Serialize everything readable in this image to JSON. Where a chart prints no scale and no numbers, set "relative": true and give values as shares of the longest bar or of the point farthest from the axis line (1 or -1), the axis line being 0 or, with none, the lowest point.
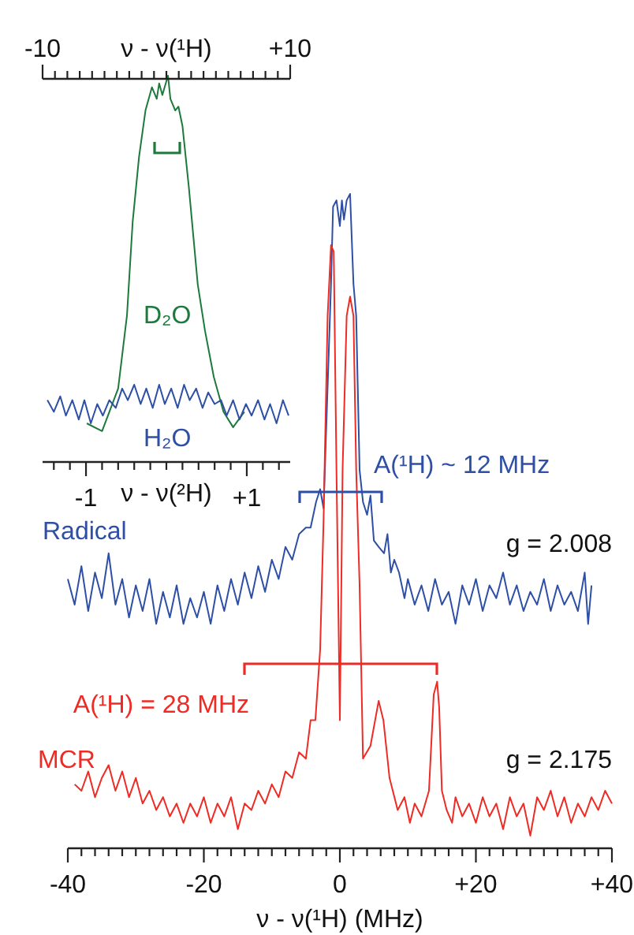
{
  "chart_data": [
    {
      "type": "line",
      "relative": true,
      "xlabel": "ν - ν(¹H) (MHz)",
      "xlim": [
        -40,
        40
      ],
      "xticks": [
        -40,
        {
          "value": -38,
          "label": null
        },
        {
          "value": -36,
          "label": null
        },
        {
          "value": -34,
          "label": null
        },
        {
          "value": -32,
          "label": null
        },
        {
          "value": -30,
          "label": null
        },
        {
          "value": -28,
          "label": null
        },
        {
          "value": -26,
          "label": null
        },
        {
          "value": -24,
          "label": null
        },
        {
          "value": -22,
          "label": null
        },
        -20,
        {
          "value": -18,
          "label": null
        },
        {
          "value": -16,
          "label": null
        },
        {
          "value": -14,
          "label": null
        },
        {
          "value": -12,
          "label": null
        },
        {
          "value": -10,
          "label": null
        },
        {
          "value": -8,
          "label": null
        },
        {
          "value": -6,
          "label": null
        },
        {
          "value": -4,
          "label": null
        },
        {
          "value": -2,
          "label": null
        },
        0,
        {
          "value": 2,
          "label": null
        },
        {
          "value": 4,
          "label": null
        },
        {
          "value": 6,
          "label": null
        },
        {
          "value": 8,
          "label": null
        },
        {
          "value": 10,
          "label": null
        },
        {
          "value": 12,
          "label": null
        },
        {
          "value": 14,
          "label": null
        },
        {
          "value": 16,
          "label": null
        },
        {
          "value": 18,
          "label": null
        },
        {
          "value": 20,
          "label": "+20"
        },
        {
          "value": 22,
          "label": null
        },
        {
          "value": 24,
          "label": null
        },
        {
          "value": 26,
          "label": null
        },
        {
          "value": 28,
          "label": null
        },
        {
          "value": 30,
          "label": null
        },
        {
          "value": 32,
          "label": null
        },
        {
          "value": 34,
          "label": null
        },
        {
          "value": 36,
          "label": null
        },
        {
          "value": 38,
          "label": null
        },
        {
          "value": 40,
          "label": "+40"
        }
      ],
      "grid": false,
      "marker": "none",
      "line_style": "solid",
      "series": [
        {
          "name": "Radical",
          "color": "#2e4fa6",
          "x": [
            -40,
            -39,
            -38,
            -37,
            -36,
            -35,
            -34,
            -33,
            -32,
            -31,
            -30,
            -29,
            -28,
            -27,
            -26,
            -25,
            -24,
            -23,
            -22,
            -21,
            -20,
            -19,
            -18,
            -17,
            -16,
            -15,
            -14,
            -13,
            -12,
            -11,
            -10,
            -9,
            -8,
            -7,
            -6,
            -5,
            -4.3,
            -3.5,
            -2.9,
            -2.4,
            -1.8,
            -1.3,
            -1.0,
            -0.5,
            0,
            0.3,
            0.6,
            1.0,
            1.5,
            2.0,
            2.4,
            2.9,
            3.4,
            4,
            4.5,
            5,
            5.7,
            6.5,
            7,
            7.5,
            8,
            8.7,
            9.5,
            10,
            11,
            12,
            13,
            14,
            15,
            16,
            17,
            18,
            19,
            20,
            21,
            22,
            23,
            24,
            25,
            26,
            27,
            28,
            29,
            30,
            31,
            32,
            33,
            34,
            35,
            36,
            36.5,
            37
          ],
          "values": [
            0.4,
            0.36,
            0.42,
            0.35,
            0.41,
            0.37,
            0.44,
            0.36,
            0.4,
            0.34,
            0.39,
            0.35,
            0.4,
            0.33,
            0.38,
            0.34,
            0.39,
            0.33,
            0.37,
            0.34,
            0.38,
            0.33,
            0.39,
            0.35,
            0.4,
            0.36,
            0.41,
            0.37,
            0.42,
            0.38,
            0.43,
            0.4,
            0.45,
            0.43,
            0.47,
            0.48,
            0.48,
            0.52,
            0.54,
            0.51,
            0.7,
            0.86,
            0.98,
            0.99,
            0.95,
            0.99,
            0.96,
            0.99,
            1.0,
            0.86,
            0.81,
            0.57,
            0.52,
            0.5,
            0.53,
            0.46,
            0.45,
            0.44,
            0.47,
            0.41,
            0.43,
            0.41,
            0.37,
            0.4,
            0.36,
            0.39,
            0.35,
            0.4,
            0.36,
            0.38,
            0.33,
            0.39,
            0.36,
            0.4,
            0.35,
            0.39,
            0.37,
            0.41,
            0.36,
            0.39,
            0.35,
            0.38,
            0.36,
            0.4,
            0.35,
            0.39,
            0.36,
            0.38,
            0.35,
            0.41,
            0.33,
            0.39
          ]
        },
        {
          "name": "MCR",
          "color": "#ee2b24",
          "x": [
            -39,
            -38,
            -37,
            -36,
            -35,
            -34,
            -33,
            -32,
            -31,
            -30,
            -29,
            -28,
            -27,
            -26,
            -25,
            -24,
            -23,
            -22,
            -21,
            -20,
            -19,
            -18,
            -17,
            -16,
            -15,
            -14,
            -13,
            -12,
            -11,
            -10,
            -9,
            -8,
            -7,
            -6,
            -5,
            -4.3,
            -3.6,
            -2.9,
            -2.4,
            -1.8,
            -1.3,
            -0.9,
            -0.5,
            0,
            0.4,
            1.0,
            1.5,
            2.0,
            2.4,
            2.9,
            3.4,
            4.5,
            5.7,
            6.4,
            7.3,
            8.5,
            9.5,
            10.3,
            11,
            12,
            13.1,
            13.8,
            14.3,
            14.6,
            15,
            15.7,
            16.5,
            17,
            18,
            19,
            20,
            21,
            22,
            23,
            24,
            25,
            26,
            27,
            28,
            29,
            30,
            31,
            32,
            33,
            34,
            35,
            36,
            37,
            38,
            39,
            40
          ],
          "values": [
            0.08,
            0.07,
            0.1,
            0.06,
            0.09,
            0.11,
            0.07,
            0.1,
            0.06,
            0.09,
            0.05,
            0.07,
            0.04,
            0.06,
            0.03,
            0.05,
            0.02,
            0.05,
            0.03,
            0.06,
            0.02,
            0.05,
            0.03,
            0.06,
            0.01,
            0.05,
            0.04,
            0.07,
            0.05,
            0.08,
            0.06,
            0.1,
            0.09,
            0.13,
            0.12,
            0.18,
            0.18,
            0.29,
            0.49,
            0.81,
            0.92,
            0.91,
            0.57,
            0.18,
            0.57,
            0.81,
            0.84,
            0.81,
            0.57,
            0.39,
            0.12,
            0.14,
            0.21,
            0.18,
            0.09,
            0.04,
            0.06,
            0.02,
            0.05,
            0.03,
            0.07,
            0.22,
            0.24,
            0.2,
            0.07,
            0.04,
            0.02,
            0.06,
            0.03,
            0.05,
            0.02,
            0.06,
            0.03,
            0.05,
            0.01,
            0.06,
            0.03,
            0.05,
            0.0,
            0.06,
            0.04,
            0.07,
            0.03,
            0.06,
            0.02,
            0.05,
            0.03,
            0.06,
            0.04,
            0.07,
            0.05
          ]
        }
      ],
      "annotations": [
        "A(¹H) ~ 12 MHz",
        "A(¹H) = 28 MHz",
        "g = 2.008",
        "g = 2.175"
      ]
    },
    {
      "type": "line",
      "relative": true,
      "xlabel": "ν - ν(²H)",
      "xlim": [
        -1.54,
        1.54
      ],
      "xticks": [
        {
          "value": -1.4,
          "label": null
        },
        {
          "value": -1.2,
          "label": null
        },
        -1,
        {
          "value": -0.8,
          "label": null
        },
        {
          "value": -0.6,
          "label": null
        },
        {
          "value": -0.4,
          "label": null
        },
        {
          "value": -0.2,
          "label": null
        },
        {
          "value": 0,
          "label": null
        },
        {
          "value": 0.2,
          "label": null
        },
        {
          "value": 0.4,
          "label": null
        },
        {
          "value": 0.6,
          "label": null
        },
        {
          "value": 0.8,
          "label": null
        },
        {
          "value": 1,
          "label": "+1"
        },
        {
          "value": 1.2,
          "label": null
        },
        {
          "value": 1.4,
          "label": null
        }
      ],
      "x2label": "ν - ν(¹H)",
      "x2lim": [
        -10,
        10
      ],
      "x2ticks": [
        -10,
        {
          "value": -9,
          "label": null
        },
        {
          "value": -8,
          "label": null
        },
        {
          "value": -7,
          "label": null
        },
        {
          "value": -6,
          "label": null
        },
        {
          "value": -5,
          "label": null
        },
        {
          "value": -4,
          "label": null
        },
        {
          "value": -3,
          "label": null
        },
        {
          "value": -2,
          "label": null
        },
        {
          "value": -1,
          "label": null
        },
        {
          "value": 0,
          "label": null
        },
        {
          "value": 1,
          "label": null
        },
        {
          "value": 2,
          "label": null
        },
        {
          "value": 3,
          "label": null
        },
        {
          "value": 4,
          "label": null
        },
        {
          "value": 5,
          "label": null
        },
        {
          "value": 6,
          "label": null
        },
        {
          "value": 7,
          "label": null
        },
        {
          "value": 8,
          "label": null
        },
        {
          "value": 9,
          "label": null
        },
        {
          "value": 10,
          "label": "+10"
        }
      ],
      "grid": false,
      "marker": "none",
      "line_style": "solid",
      "series": [
        {
          "name": "D₂O",
          "color": "#1d7a3c",
          "x": [
            -0.99,
            -0.8,
            -0.6,
            -0.49,
            -0.42,
            -0.34,
            -0.26,
            -0.18,
            -0.12,
            -0.09,
            -0.05,
            0.02,
            0.05,
            0.11,
            0.15,
            0.2,
            0.28,
            0.39,
            0.48,
            0.59,
            0.71,
            0.83,
            0.97
          ],
          "values": [
            0.1,
            0.08,
            0.19,
            0.38,
            0.62,
            0.79,
            0.91,
            0.97,
            0.94,
            0.98,
            0.95,
            1.0,
            0.94,
            0.91,
            0.92,
            0.87,
            0.71,
            0.46,
            0.34,
            0.22,
            0.13,
            0.09,
            0.13
          ]
        },
        {
          "name": "H₂O",
          "color": "#2e4fa6",
          "x": [
            -1.48,
            -1.4,
            -1.32,
            -1.25,
            -1.17,
            -1.09,
            -1.02,
            -0.94,
            -0.86,
            -0.79,
            -0.71,
            -0.63,
            -0.55,
            -0.48,
            -0.4,
            -0.32,
            -0.25,
            -0.17,
            -0.09,
            -0.02,
            0.06,
            0.14,
            0.22,
            0.29,
            0.37,
            0.45,
            0.52,
            0.6,
            0.68,
            0.75,
            0.83,
            0.91,
            0.99,
            1.06,
            1.14,
            1.22,
            1.29,
            1.37,
            1.45,
            1.52
          ],
          "values": [
            0.16,
            0.13,
            0.17,
            0.12,
            0.16,
            0.11,
            0.16,
            0.1,
            0.15,
            0.12,
            0.16,
            0.14,
            0.19,
            0.16,
            0.2,
            0.15,
            0.19,
            0.14,
            0.2,
            0.15,
            0.19,
            0.14,
            0.2,
            0.16,
            0.19,
            0.14,
            0.18,
            0.15,
            0.16,
            0.12,
            0.16,
            0.11,
            0.15,
            0.12,
            0.16,
            0.11,
            0.15,
            0.1,
            0.16,
            0.12
          ]
        }
      ]
    }
  ]
}
